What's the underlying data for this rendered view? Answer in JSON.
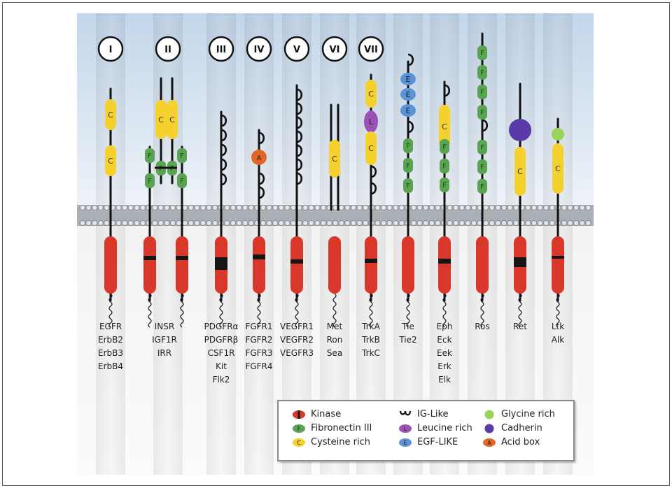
{
  "diagram": {
    "classes": [
      {
        "numeral": "I",
        "names": [
          "EGFR",
          "ErbB2",
          "ErbB3",
          "ErbB4"
        ]
      },
      {
        "numeral": "II",
        "names": [
          "INSR",
          "IGF1R",
          "IRR"
        ]
      },
      {
        "numeral": "III",
        "names": [
          "PDGFRα",
          "PDGFRβ",
          "CSF1R",
          "Kit",
          "Flk2"
        ]
      },
      {
        "numeral": "IV",
        "names": [
          "FGFR1",
          "FGFR2",
          "FGFR3",
          "FGFR4"
        ]
      },
      {
        "numeral": "V",
        "names": [
          "VEGFR1",
          "VEGFR2",
          "VEGFR3"
        ]
      },
      {
        "numeral": "VI",
        "names": [
          "Met",
          "Ron",
          "Sea"
        ]
      },
      {
        "numeral": "VII",
        "names": [
          "TrkA",
          "TrkB",
          "TrkC"
        ]
      },
      {
        "numeral": "",
        "names": [
          "Tie",
          "Tie2"
        ]
      },
      {
        "numeral": "",
        "names": [
          "Eph",
          "Eck",
          "Eek",
          "Erk",
          "Elk"
        ]
      },
      {
        "numeral": "",
        "names": [
          "Ros"
        ]
      },
      {
        "numeral": "",
        "names": [
          "Ret"
        ]
      },
      {
        "numeral": "",
        "names": [
          "Ltk",
          "Alk"
        ]
      }
    ],
    "domain_letters": {
      "cysteine": "C",
      "fibronectin": "F",
      "leucine": "L",
      "egf": "E",
      "acid": "A"
    }
  },
  "legend": {
    "items": [
      {
        "icon": "kinase",
        "label": "Kinase"
      },
      {
        "icon": "fibronectin",
        "label": "Fibronectin III"
      },
      {
        "icon": "cysteine",
        "label": "Cysteine rich"
      },
      {
        "icon": "ig",
        "label": "IG-Like"
      },
      {
        "icon": "leucine",
        "label": "Leucine rich"
      },
      {
        "icon": "egf",
        "label": "EGF-LIKE"
      },
      {
        "icon": "glycine",
        "label": "Glycine rich"
      },
      {
        "icon": "cadherin",
        "label": "Cadherin"
      },
      {
        "icon": "acid",
        "label": "Acid box"
      }
    ]
  },
  "colors": {
    "kinase": "#d9372a",
    "fibronectin": "#5aa352",
    "cysteine": "#f5d12e",
    "leucine": "#9a52b4",
    "egf": "#5a93d6",
    "glycine": "#9ad35a",
    "cadherin": "#5a3aa6",
    "acid": "#e0662a",
    "membrane": "#a9b0b6"
  }
}
